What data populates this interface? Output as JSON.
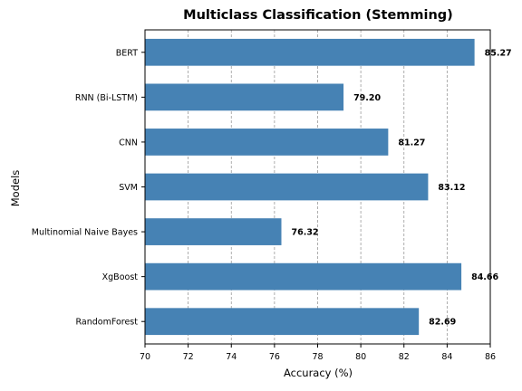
{
  "chart_data": {
    "type": "bar",
    "orientation": "horizontal",
    "title": "Multiclass Classification (Stemming)",
    "xlabel": "Accuracy (%)",
    "ylabel": "Models",
    "categories": [
      "BERT",
      "RNN (Bi-LSTM)",
      "CNN",
      "SVM",
      "Multinomial Naive Bayes",
      "XgBoost",
      "RandomForest"
    ],
    "values": [
      85.27,
      79.2,
      81.27,
      83.12,
      76.32,
      84.66,
      82.69
    ],
    "value_labels": [
      "85.27",
      "79.20",
      "81.27",
      "83.12",
      "76.32",
      "84.66",
      "82.69"
    ],
    "xlim": [
      70,
      86
    ],
    "xticks": [
      70,
      72,
      74,
      76,
      78,
      80,
      82,
      84,
      86
    ],
    "grid": "x, dashed",
    "bar_color": "#4682b4"
  }
}
